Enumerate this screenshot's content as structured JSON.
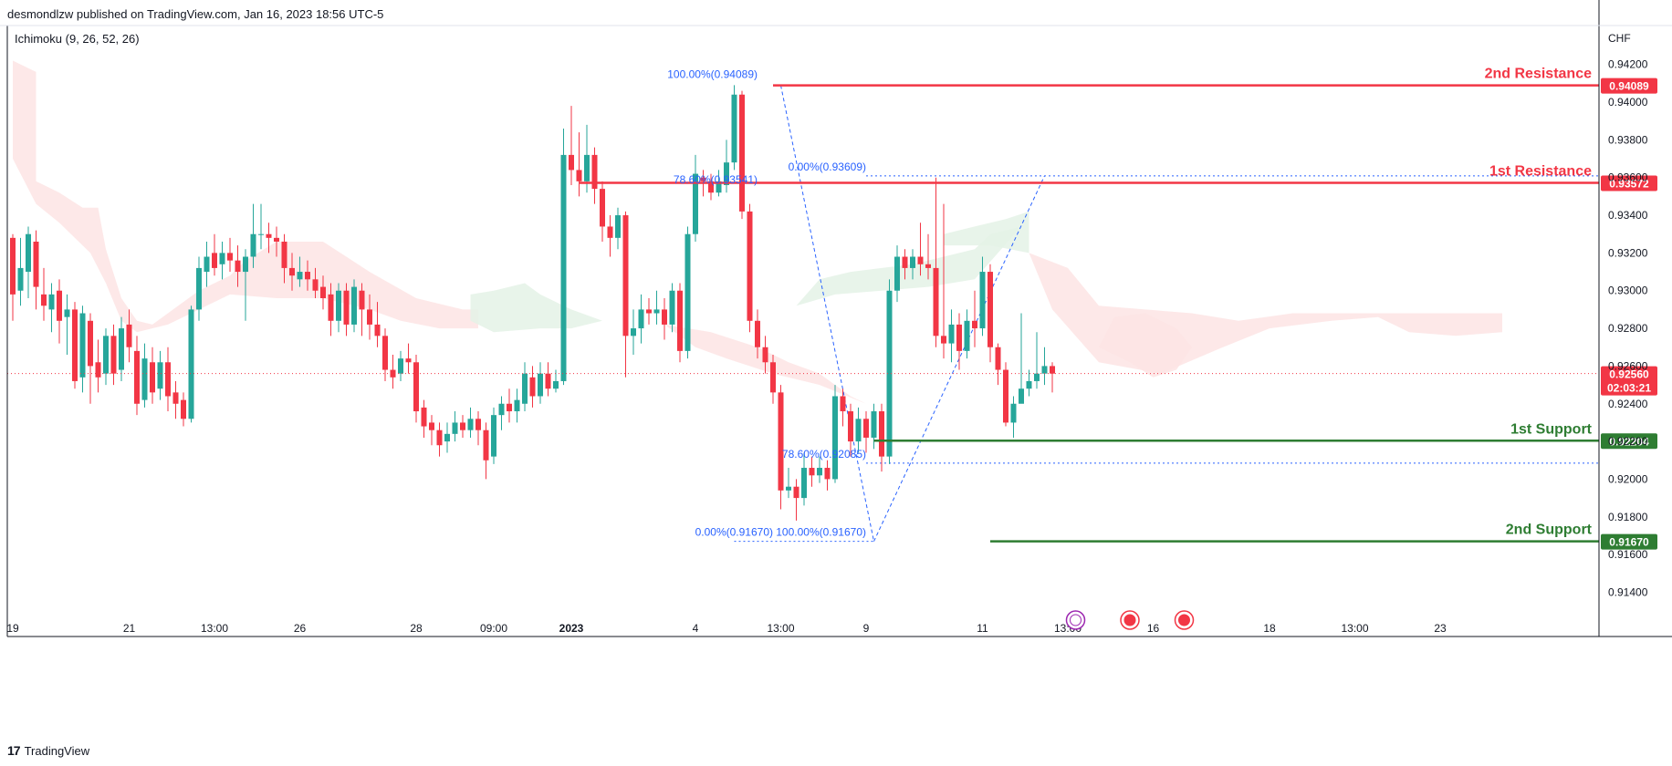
{
  "header": {
    "publisher": "desmondlzw published on TradingView.com, Jan 16, 2023 18:56 UTC-5",
    "indicator": "Ichimoku (9, 26, 52, 26)",
    "currency": "CHF"
  },
  "footer": {
    "brand": "TradingView",
    "logo_text": "17"
  },
  "colors": {
    "up": "#26a69a",
    "down": "#f23645",
    "resistance": "#f23645",
    "support": "#2e7d32",
    "fib": "#2962ff",
    "cloud_bear": "#fde4e4",
    "cloud_bull": "#e4f2e6"
  },
  "chart_data": {
    "type": "candlestick",
    "symbol_currency": "CHF",
    "ylim": [
      0.9132,
      0.943
    ],
    "y_ticks": [
      0.914,
      0.916,
      0.918,
      0.92,
      0.922,
      0.924,
      0.926,
      0.928,
      0.93,
      0.932,
      0.934,
      0.936,
      0.938,
      0.94,
      0.942
    ],
    "x_ticks": [
      {
        "label": "19",
        "i": 0
      },
      {
        "label": "21",
        "i": 15
      },
      {
        "label": "13:00",
        "i": 26
      },
      {
        "label": "26",
        "i": 37
      },
      {
        "label": "28",
        "i": 52
      },
      {
        "label": "09:00",
        "i": 62
      },
      {
        "label": "2023",
        "i": 72
      },
      {
        "label": "4",
        "i": 88
      },
      {
        "label": "13:00",
        "i": 99
      },
      {
        "label": "9",
        "i": 110
      },
      {
        "label": "11",
        "i": 125
      },
      {
        "label": "13:00",
        "i": 136
      },
      {
        "label": "16",
        "i": 147
      },
      {
        "label": "18",
        "i": 162
      },
      {
        "label": "13:00",
        "i": 173
      },
      {
        "label": "23",
        "i": 184
      }
    ],
    "current_price": 0.9256,
    "countdown": "02:03:21",
    "candles": [
      [
        0.9328,
        0.9298,
        0.933,
        0.9284
      ],
      [
        0.93,
        0.9312,
        0.9328,
        0.9292
      ],
      [
        0.931,
        0.933,
        0.9334,
        0.9296
      ],
      [
        0.9326,
        0.9302,
        0.9332,
        0.929
      ],
      [
        0.9298,
        0.9292,
        0.9312,
        0.9284
      ],
      [
        0.929,
        0.9298,
        0.9304,
        0.9278
      ],
      [
        0.93,
        0.9284,
        0.9306,
        0.9272
      ],
      [
        0.9286,
        0.929,
        0.9298,
        0.9266
      ],
      [
        0.929,
        0.9252,
        0.9294,
        0.9248
      ],
      [
        0.9254,
        0.9288,
        0.9292,
        0.9246
      ],
      [
        0.9284,
        0.926,
        0.9288,
        0.924
      ],
      [
        0.9262,
        0.9254,
        0.9274,
        0.9246
      ],
      [
        0.9256,
        0.9276,
        0.928,
        0.925
      ],
      [
        0.9276,
        0.9256,
        0.9282,
        0.925
      ],
      [
        0.9258,
        0.928,
        0.9286,
        0.9252
      ],
      [
        0.9282,
        0.927,
        0.929,
        0.9262
      ],
      [
        0.9268,
        0.924,
        0.9276,
        0.9234
      ],
      [
        0.9242,
        0.9264,
        0.9272,
        0.9238
      ],
      [
        0.9262,
        0.9246,
        0.927,
        0.924
      ],
      [
        0.9248,
        0.9262,
        0.9268,
        0.9242
      ],
      [
        0.9262,
        0.9244,
        0.927,
        0.9236
      ],
      [
        0.9246,
        0.924,
        0.9252,
        0.9232
      ],
      [
        0.9242,
        0.9232,
        0.9246,
        0.9228
      ],
      [
        0.9232,
        0.929,
        0.9292,
        0.923
      ],
      [
        0.929,
        0.9312,
        0.9318,
        0.9284
      ],
      [
        0.931,
        0.9318,
        0.9326,
        0.9302
      ],
      [
        0.932,
        0.9312,
        0.933,
        0.9308
      ],
      [
        0.9314,
        0.932,
        0.9326,
        0.9306
      ],
      [
        0.932,
        0.9316,
        0.9328,
        0.931
      ],
      [
        0.9316,
        0.931,
        0.9324,
        0.9302
      ],
      [
        0.931,
        0.9318,
        0.9322,
        0.9284
      ],
      [
        0.9318,
        0.933,
        0.9346,
        0.9312
      ],
      [
        0.933,
        0.933,
        0.9346,
        0.9322
      ],
      [
        0.933,
        0.9328,
        0.9336,
        0.932
      ],
      [
        0.9328,
        0.9326,
        0.9334,
        0.9318
      ],
      [
        0.9326,
        0.9312,
        0.933,
        0.9304
      ],
      [
        0.9312,
        0.9308,
        0.932,
        0.93
      ],
      [
        0.9306,
        0.931,
        0.9318,
        0.9302
      ],
      [
        0.931,
        0.9306,
        0.9316,
        0.93
      ],
      [
        0.9306,
        0.93,
        0.9312,
        0.9296
      ],
      [
        0.9302,
        0.9296,
        0.9308,
        0.929
      ],
      [
        0.9298,
        0.9284,
        0.9304,
        0.9276
      ],
      [
        0.9284,
        0.93,
        0.9304,
        0.9278
      ],
      [
        0.93,
        0.9282,
        0.9304,
        0.9276
      ],
      [
        0.9282,
        0.9302,
        0.9306,
        0.9278
      ],
      [
        0.93,
        0.929,
        0.9304,
        0.9276
      ],
      [
        0.929,
        0.9282,
        0.9298,
        0.9274
      ],
      [
        0.9282,
        0.9276,
        0.9294,
        0.927
      ],
      [
        0.9276,
        0.9258,
        0.928,
        0.9252
      ],
      [
        0.9258,
        0.9254,
        0.9266,
        0.9248
      ],
      [
        0.9256,
        0.9264,
        0.9268,
        0.9252
      ],
      [
        0.9264,
        0.9262,
        0.9272,
        0.9256
      ],
      [
        0.9262,
        0.9236,
        0.9266,
        0.923
      ],
      [
        0.9238,
        0.9228,
        0.9242,
        0.9222
      ],
      [
        0.923,
        0.9226,
        0.9234,
        0.9218
      ],
      [
        0.9226,
        0.9218,
        0.923,
        0.9212
      ],
      [
        0.922,
        0.9224,
        0.923,
        0.9214
      ],
      [
        0.9224,
        0.923,
        0.9236,
        0.922
      ],
      [
        0.923,
        0.9226,
        0.9234,
        0.9222
      ],
      [
        0.9226,
        0.9232,
        0.9238,
        0.9222
      ],
      [
        0.9232,
        0.9226,
        0.9236,
        0.9218
      ],
      [
        0.9226,
        0.921,
        0.923,
        0.92
      ],
      [
        0.9212,
        0.9234,
        0.9238,
        0.9208
      ],
      [
        0.9234,
        0.924,
        0.9244,
        0.9226
      ],
      [
        0.924,
        0.9236,
        0.9248,
        0.923
      ],
      [
        0.9236,
        0.9242,
        0.9248,
        0.923
      ],
      [
        0.924,
        0.9256,
        0.9262,
        0.9236
      ],
      [
        0.9254,
        0.9244,
        0.926,
        0.9238
      ],
      [
        0.9244,
        0.9256,
        0.9262,
        0.924
      ],
      [
        0.9256,
        0.9248,
        0.9262,
        0.9244
      ],
      [
        0.9248,
        0.9252,
        0.9258,
        0.9246
      ],
      [
        0.9252,
        0.9372,
        0.9386,
        0.925
      ],
      [
        0.9372,
        0.9364,
        0.9398,
        0.9356
      ],
      [
        0.9364,
        0.9358,
        0.9384,
        0.935
      ],
      [
        0.9358,
        0.9372,
        0.9388,
        0.9352
      ],
      [
        0.9372,
        0.9354,
        0.9376,
        0.9346
      ],
      [
        0.9354,
        0.9334,
        0.9358,
        0.9326
      ],
      [
        0.9334,
        0.9328,
        0.934,
        0.9318
      ],
      [
        0.9328,
        0.934,
        0.9344,
        0.9322
      ],
      [
        0.934,
        0.9276,
        0.9342,
        0.9254
      ],
      [
        0.9276,
        0.928,
        0.929,
        0.9266
      ],
      [
        0.928,
        0.929,
        0.9298,
        0.9272
      ],
      [
        0.929,
        0.9288,
        0.9296,
        0.9282
      ],
      [
        0.9288,
        0.929,
        0.93,
        0.9282
      ],
      [
        0.929,
        0.9282,
        0.9296,
        0.9274
      ],
      [
        0.9282,
        0.93,
        0.9304,
        0.9278
      ],
      [
        0.93,
        0.9268,
        0.9304,
        0.9262
      ],
      [
        0.9268,
        0.933,
        0.9334,
        0.9264
      ],
      [
        0.933,
        0.9362,
        0.9372,
        0.9326
      ],
      [
        0.936,
        0.9358,
        0.9364,
        0.935
      ],
      [
        0.9358,
        0.9352,
        0.9362,
        0.9348
      ],
      [
        0.9352,
        0.9358,
        0.9364,
        0.935
      ],
      [
        0.9356,
        0.9368,
        0.938,
        0.9352
      ],
      [
        0.9368,
        0.9404,
        0.9409,
        0.9364
      ],
      [
        0.9404,
        0.9342,
        0.9406,
        0.9338
      ],
      [
        0.9342,
        0.9284,
        0.9346,
        0.9278
      ],
      [
        0.9284,
        0.927,
        0.929,
        0.9264
      ],
      [
        0.927,
        0.9262,
        0.9276,
        0.9256
      ],
      [
        0.9262,
        0.9246,
        0.9266,
        0.924
      ],
      [
        0.9246,
        0.9194,
        0.925,
        0.9184
      ],
      [
        0.9194,
        0.9196,
        0.9206,
        0.919
      ],
      [
        0.9196,
        0.919,
        0.92,
        0.9178
      ],
      [
        0.919,
        0.9206,
        0.9214,
        0.9186
      ],
      [
        0.9206,
        0.9202,
        0.9212,
        0.9196
      ],
      [
        0.9202,
        0.9206,
        0.9212,
        0.9198
      ],
      [
        0.9206,
        0.92,
        0.921,
        0.9194
      ],
      [
        0.92,
        0.9244,
        0.925,
        0.9198
      ],
      [
        0.9244,
        0.9236,
        0.9248,
        0.9228
      ],
      [
        0.9236,
        0.922,
        0.924,
        0.9212
      ],
      [
        0.922,
        0.9232,
        0.9238,
        0.9214
      ],
      [
        0.9232,
        0.9222,
        0.9236,
        0.9214
      ],
      [
        0.9222,
        0.9236,
        0.924,
        0.9216
      ],
      [
        0.9236,
        0.9212,
        0.924,
        0.9204
      ],
      [
        0.9212,
        0.93,
        0.9306,
        0.9208
      ],
      [
        0.93,
        0.9318,
        0.9324,
        0.9294
      ],
      [
        0.9318,
        0.9312,
        0.9322,
        0.9306
      ],
      [
        0.9312,
        0.9318,
        0.9322,
        0.9306
      ],
      [
        0.9318,
        0.9314,
        0.9336,
        0.9308
      ],
      [
        0.9314,
        0.9312,
        0.933,
        0.9306
      ],
      [
        0.9312,
        0.9276,
        0.936,
        0.927
      ],
      [
        0.9276,
        0.9272,
        0.9346,
        0.9264
      ],
      [
        0.9272,
        0.9282,
        0.929,
        0.9262
      ],
      [
        0.9282,
        0.9268,
        0.9288,
        0.9258
      ],
      [
        0.9268,
        0.9284,
        0.929,
        0.9264
      ],
      [
        0.9284,
        0.928,
        0.93,
        0.927
      ],
      [
        0.928,
        0.931,
        0.9318,
        0.9276
      ],
      [
        0.931,
        0.927,
        0.9314,
        0.9262
      ],
      [
        0.927,
        0.9258,
        0.9272,
        0.925
      ],
      [
        0.9258,
        0.923,
        0.9262,
        0.9228
      ],
      [
        0.923,
        0.924,
        0.9244,
        0.9222
      ],
      [
        0.924,
        0.9248,
        0.9288,
        0.9242
      ],
      [
        0.9248,
        0.9252,
        0.9258,
        0.9244
      ],
      [
        0.9252,
        0.9256,
        0.9278,
        0.9248
      ],
      [
        0.9256,
        0.926,
        0.927,
        0.925
      ],
      [
        0.926,
        0.9256,
        0.9262,
        0.9246
      ]
    ],
    "levels": [
      {
        "label": "2nd Resistance",
        "price": 0.94089,
        "tag": "0.94089",
        "kind": "resistance"
      },
      {
        "label": "1st Resistance",
        "price": 0.93572,
        "tag": "0.93572",
        "kind": "resistance"
      },
      {
        "label": "1st Support",
        "price": 0.92204,
        "tag": "0.92204",
        "kind": "support"
      },
      {
        "label": "2nd Support",
        "price": 0.9167,
        "tag": "0.91670",
        "kind": "support"
      }
    ],
    "price_tag": {
      "value": "0.92560",
      "countdown": "02:03:21"
    },
    "fib_labels": [
      {
        "text": "100.00%(0.94089)",
        "price": 0.94089
      },
      {
        "text": "78.60%(0.93541)",
        "price": 0.93541
      },
      {
        "text": "0.00%(0.93609)",
        "price": 0.93609
      },
      {
        "text": "78.60%(0.92085)",
        "price": 0.92085
      },
      {
        "text": "0.00%(0.91670)",
        "price": 0.9167
      },
      {
        "text": "100.00%(0.91670)",
        "price": 0.9167
      }
    ]
  }
}
